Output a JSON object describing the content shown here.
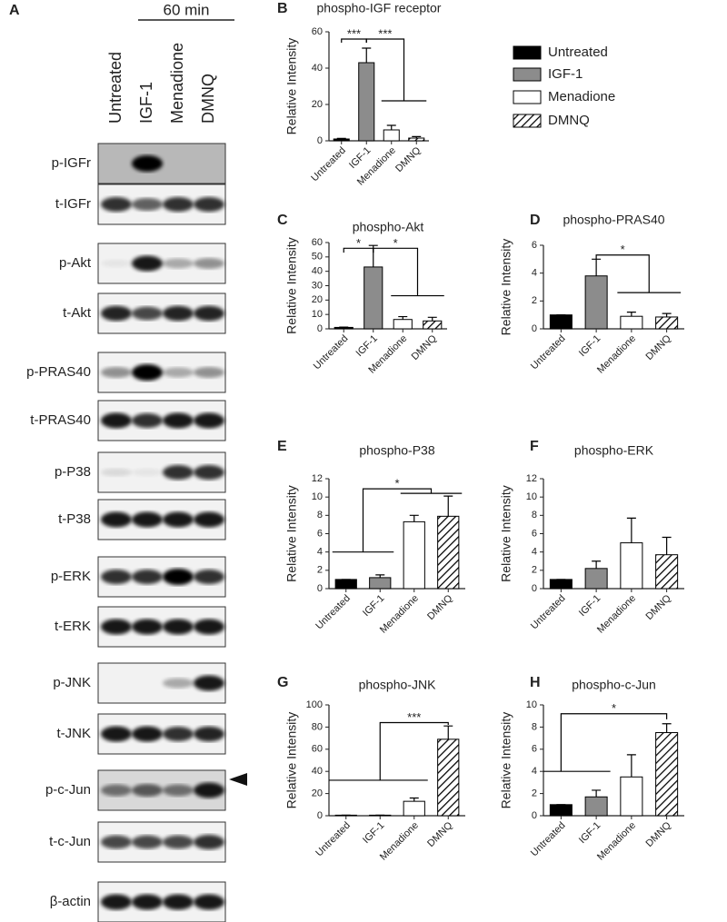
{
  "blot": {
    "letter": "A",
    "timepoint": "60 min",
    "lanes": [
      "Untreated",
      "IGF-1",
      "Menadione",
      "DMNQ"
    ],
    "rows": [
      "p-IGFr",
      "t-IGFr",
      "p-Akt",
      "t-Akt",
      "p-PRAS40",
      "t-PRAS40",
      "p-P38",
      "t-P38",
      "p-ERK",
      "t-ERK",
      "p-JNK",
      "t-JNK",
      "p-c-Jun",
      "t-c-Jun",
      "β-actin"
    ]
  },
  "legend": [
    {
      "name": "Untreated",
      "color": "#000000"
    },
    {
      "name": "IGF-1",
      "color": "#8c8c8c"
    },
    {
      "name": "Menadione",
      "color": "#ffffff"
    },
    {
      "name": "DMNQ",
      "color": "#ffffff",
      "hatch": true
    }
  ],
  "chart_data": [
    {
      "type": "bar",
      "letter": "B",
      "title": "phospho-IGF receptor",
      "ylabel": "Relative Intensity",
      "categories": [
        "Untreated",
        "IGF-1",
        "Menadione",
        "DMNQ"
      ],
      "values": [
        1,
        43,
        6,
        1.5
      ],
      "errors": [
        0.3,
        8,
        2.5,
        0.8
      ],
      "ylim": [
        0,
        60
      ],
      "yticks": [
        0,
        20,
        40,
        60
      ],
      "annotations": [
        "***",
        "***"
      ]
    },
    {
      "type": "bar",
      "letter": "C",
      "title": "phospho-Akt",
      "ylabel": "Relative Intensity",
      "categories": [
        "Untreated",
        "IGF-1",
        "Menadione",
        "DMNQ"
      ],
      "values": [
        1,
        43,
        6.5,
        5.5
      ],
      "errors": [
        0.2,
        15,
        2,
        2.5
      ],
      "ylim": [
        0,
        60
      ],
      "yticks": [
        0,
        10,
        20,
        30,
        40,
        50,
        60
      ],
      "annotations": [
        "*",
        "*"
      ]
    },
    {
      "type": "bar",
      "letter": "D",
      "title": "phospho-PRAS40",
      "ylabel": "Relative Intensity",
      "categories": [
        "Untreated",
        "IGF-1",
        "Menadione",
        "DMNQ"
      ],
      "values": [
        1,
        3.8,
        0.9,
        0.85
      ],
      "errors": [
        0,
        1.2,
        0.3,
        0.25
      ],
      "ylim": [
        0,
        6
      ],
      "yticks": [
        0,
        2,
        4,
        6
      ],
      "annotations": [
        "*"
      ]
    },
    {
      "type": "bar",
      "letter": "E",
      "title": "phospho-P38",
      "ylabel": "Relative Intensity",
      "categories": [
        "Untreated",
        "IGF-1",
        "Menadione",
        "DMNQ"
      ],
      "values": [
        1,
        1.2,
        7.3,
        7.9
      ],
      "errors": [
        0,
        0.3,
        0.7,
        2.2
      ],
      "ylim": [
        0,
        12
      ],
      "yticks": [
        0,
        2,
        4,
        6,
        8,
        10,
        12
      ],
      "annotations": [
        "*"
      ]
    },
    {
      "type": "bar",
      "letter": "F",
      "title": "phospho-ERK",
      "ylabel": "Relative Intensity",
      "categories": [
        "Untreated",
        "IGF-1",
        "Menadione",
        "DMNQ"
      ],
      "values": [
        1,
        2.2,
        5,
        3.7
      ],
      "errors": [
        0,
        0.8,
        2.7,
        1.9
      ],
      "ylim": [
        0,
        12
      ],
      "yticks": [
        0,
        2,
        4,
        6,
        8,
        10,
        12
      ],
      "annotations": []
    },
    {
      "type": "bar",
      "letter": "G",
      "title": "phospho-JNK",
      "ylabel": "Relative Intensity",
      "categories": [
        "Untreated",
        "IGF-1",
        "Menadione",
        "DMNQ"
      ],
      "values": [
        0.5,
        0.5,
        13,
        69
      ],
      "errors": [
        0,
        0,
        3,
        12
      ],
      "ylim": [
        0,
        100
      ],
      "yticks": [
        0,
        20,
        40,
        60,
        80,
        100
      ],
      "annotations": [
        "***"
      ]
    },
    {
      "type": "bar",
      "letter": "H",
      "title": "phospho-c-Jun",
      "ylabel": "Relative Intensity",
      "categories": [
        "Untreated",
        "IGF-1",
        "Menadione",
        "DMNQ"
      ],
      "values": [
        1,
        1.7,
        3.5,
        7.5
      ],
      "errors": [
        0,
        0.6,
        2,
        0.8
      ],
      "ylim": [
        0,
        10
      ],
      "yticks": [
        0,
        2,
        4,
        6,
        8,
        10
      ],
      "annotations": [
        "*"
      ]
    }
  ]
}
